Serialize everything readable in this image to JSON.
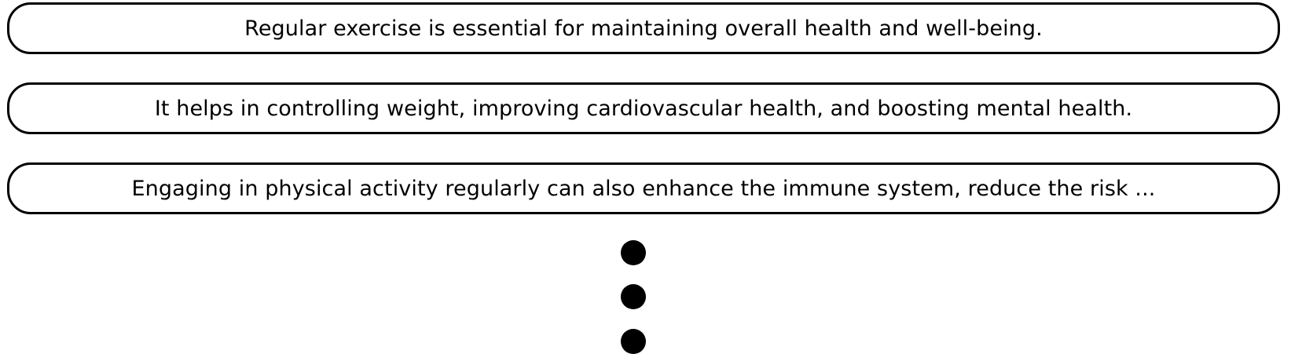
{
  "items": [
    {
      "text": "Regular exercise is essential for maintaining overall health and well-being."
    },
    {
      "text": "It helps in controlling weight, improving cardiovascular health, and boosting mental health."
    },
    {
      "text": "Engaging in physical activity regularly can also enhance the immune system, reduce the risk  ..."
    }
  ],
  "colors": {
    "border": "#000000",
    "text": "#000000",
    "background": "#ffffff"
  }
}
